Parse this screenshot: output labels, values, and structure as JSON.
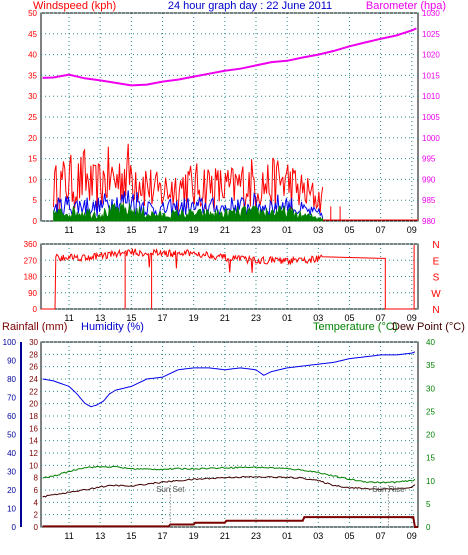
{
  "colors": {
    "background": "#ffffff",
    "frame": "#000000",
    "grid": "#2a8a8a",
    "red": "#ff0000",
    "blue": "#0000ee",
    "navy": "#00009a",
    "green": "#008000",
    "magenta": "#ee00ee",
    "darkred": "#7a0000",
    "maroon": "#400000",
    "gray": "#555555"
  },
  "header": {
    "wind_label": "Windspeed (kph)",
    "title": "24 hour graph day : 22 June 2011",
    "baro_label": "Barometer (hpa)"
  },
  "lower_header": {
    "rain_label": "Rainfall (mm)",
    "hum_label": "Humidity (%)",
    "temp_label": "Temperature (°C)",
    "dew_label": "Dew Point (°C)"
  },
  "annotations": {
    "sunset": "Sun Set",
    "sunrise": "Sun Rise"
  },
  "chart_data": [
    {
      "type": "line",
      "x": [
        "11",
        "13",
        "15",
        "17",
        "19",
        "21",
        "23",
        "01",
        "03",
        "05",
        "07",
        "09"
      ],
      "x_ticks_hours": [
        11,
        13,
        15,
        17,
        19,
        21,
        23,
        25,
        27,
        29,
        31,
        33
      ],
      "x_range_hours": [
        9.2,
        33.4
      ],
      "left_axis": {
        "title": "Windspeed (kph)",
        "ticks": [
          0,
          5,
          10,
          15,
          20,
          25,
          30,
          35,
          40,
          45,
          50
        ],
        "ylim": [
          0,
          50
        ]
      },
      "right_axis": {
        "title": "Barometer (hpa)",
        "ticks": [
          980,
          985,
          990,
          995,
          1000,
          1005,
          1010,
          1015,
          1020,
          1025,
          1030
        ],
        "ylim": [
          980,
          1030
        ]
      },
      "series": [
        {
          "name": "Barometer (hpa)",
          "axis": "right",
          "color": "#ee00ee",
          "x": [
            9.3,
            10,
            11,
            12,
            13,
            14,
            15,
            16,
            17,
            18,
            19,
            20,
            21,
            22,
            23,
            24,
            25,
            26,
            27,
            28,
            29,
            30,
            31,
            32,
            33,
            33.3
          ],
          "values": [
            1014.4,
            1014.5,
            1015.2,
            1014.3,
            1013.8,
            1013.2,
            1012.6,
            1012.8,
            1013.5,
            1014,
            1014.7,
            1015.4,
            1016.1,
            1016.6,
            1017.4,
            1018.2,
            1018.5,
            1019.3,
            1020,
            1020.9,
            1022,
            1022.9,
            1023.8,
            1024.6,
            1025.8,
            1026.3
          ]
        },
        {
          "name": "Wind gust",
          "axis": "left",
          "color": "#ff0000",
          "noisy": true,
          "x": [
            10,
            10.5,
            11,
            11.5,
            12,
            12.5,
            13,
            13.5,
            14,
            14.5,
            15,
            15.5,
            16,
            16.5,
            17,
            17.5,
            18,
            18.5,
            19,
            19.5,
            20,
            20.5,
            21,
            21.5,
            22,
            22.5,
            23,
            23.5,
            24,
            24.5,
            25,
            25.5,
            26,
            26.5,
            27,
            27.3
          ],
          "values": [
            9,
            10,
            11,
            10,
            12,
            9,
            10,
            12,
            11,
            13,
            13,
            12,
            10,
            8,
            8,
            9,
            9,
            10,
            9,
            10,
            10,
            9,
            9,
            9,
            10,
            10,
            11,
            10,
            10,
            11,
            11,
            9,
            8,
            7,
            6,
            6
          ]
        },
        {
          "name": "Wind average",
          "axis": "left",
          "color": "#0000ee",
          "noisy": true,
          "x": [
            10,
            10.5,
            11,
            11.5,
            12,
            12.5,
            13,
            13.5,
            14,
            14.5,
            15,
            15.5,
            16,
            16.5,
            17,
            17.5,
            18,
            18.5,
            19,
            19.5,
            20,
            20.5,
            21,
            21.5,
            22,
            22.5,
            23,
            23.5,
            24,
            24.5,
            25,
            25.5,
            26,
            26.5,
            27,
            27.3
          ],
          "values": [
            3.5,
            4,
            4.5,
            4,
            4.5,
            3.5,
            4,
            5,
            5,
            5.5,
            6,
            5,
            4,
            3,
            3,
            3.5,
            3.5,
            4,
            3.5,
            4,
            4,
            3.5,
            3.5,
            4,
            4,
            4,
            4.5,
            4,
            4,
            4.5,
            4.5,
            3.5,
            3,
            2.5,
            2,
            2
          ]
        },
        {
          "name": "Wind (green)",
          "axis": "left",
          "color": "#008000",
          "noisy": true,
          "fill": true,
          "x": [
            10,
            11,
            12,
            13,
            14,
            15,
            16,
            17,
            18,
            19,
            20,
            21,
            22,
            23,
            24,
            25,
            26,
            27,
            27.3
          ],
          "values": [
            2,
            2.5,
            2.5,
            2,
            3,
            3,
            2,
            1.5,
            2,
            2,
            2,
            2,
            2.5,
            2.5,
            2.5,
            2.5,
            1.5,
            1,
            1
          ]
        }
      ]
    },
    {
      "type": "line",
      "x": [
        "11",
        "13",
        "15",
        "17",
        "19",
        "21",
        "23",
        "01",
        "03",
        "05",
        "07",
        "09"
      ],
      "left_axis": {
        "ticks": [
          0,
          90,
          180,
          270,
          360
        ],
        "ylim": [
          0,
          360
        ]
      },
      "right_axis_labels": [
        "N",
        "W",
        "S",
        "E",
        "N"
      ],
      "series": [
        {
          "name": "Wind direction",
          "color": "#ff0000",
          "noisy": true,
          "x": [
            10,
            11,
            12,
            13,
            14,
            15,
            16,
            17,
            18,
            19,
            20,
            21,
            22,
            23,
            24,
            25,
            26,
            27,
            27.3,
            31.3,
            31.4,
            33.1,
            33.2
          ],
          "values": [
            285,
            290,
            285,
            295,
            305,
            315,
            310,
            310,
            305,
            310,
            300,
            285,
            275,
            270,
            270,
            265,
            268,
            280,
            280,
            280,
            0,
            0,
            355
          ]
        }
      ]
    },
    {
      "type": "line",
      "x": [
        "11",
        "13",
        "15",
        "17",
        "19",
        "21",
        "23",
        "01",
        "03",
        "05",
        "07",
        "09"
      ],
      "left_axis_humidity": {
        "title": "Humidity (%)",
        "ticks": [
          0,
          10,
          20,
          30,
          40,
          50,
          60,
          70,
          80,
          90,
          100
        ],
        "ylim": [
          0,
          100
        ]
      },
      "left_axis_rain": {
        "title": "Rainfall (mm)",
        "ticks": [
          0,
          2,
          4,
          6,
          8,
          10,
          12,
          14,
          16,
          18,
          20,
          22,
          24,
          26,
          28,
          30
        ],
        "ylim": [
          0,
          30
        ]
      },
      "right_axis": {
        "title": "Temperature (°C)",
        "ticks": [
          0,
          5,
          10,
          15,
          20,
          25,
          30,
          35,
          40
        ],
        "ylim": [
          0,
          40
        ]
      },
      "series": [
        {
          "name": "Humidity (%)",
          "axis": "humidity",
          "color": "#0000ee",
          "x": [
            9.3,
            10,
            11,
            11.5,
            12,
            12.4,
            12.8,
            13.2,
            13.6,
            14,
            15,
            16,
            17,
            17.5,
            18,
            19,
            20,
            21,
            22,
            23,
            23.5,
            24,
            25,
            26,
            27,
            28,
            29,
            30,
            31,
            32,
            33,
            33.3
          ],
          "values": [
            80,
            79,
            76,
            72,
            67,
            65,
            66,
            68,
            72,
            74,
            76,
            80,
            81,
            83,
            85,
            86,
            86,
            85,
            86,
            85,
            82,
            84,
            86,
            87,
            88,
            89,
            91,
            92,
            93,
            93,
            94,
            95
          ]
        },
        {
          "name": "Temperature (°C)",
          "axis": "temp",
          "color": "#008000",
          "x": [
            9.3,
            10,
            11,
            12,
            13,
            14,
            15,
            16,
            17,
            18,
            19,
            20,
            21,
            22,
            23,
            24,
            25,
            26,
            27,
            28,
            29,
            30,
            31,
            32,
            33,
            33.3
          ],
          "values": [
            10.6,
            11,
            12,
            12.9,
            13,
            13,
            12.6,
            12.5,
            12.5,
            12.6,
            12.6,
            12.7,
            12.8,
            12.9,
            12.9,
            12.8,
            12.6,
            12.3,
            11.8,
            11,
            10.3,
            9.8,
            9.6,
            9.7,
            10,
            10.5
          ]
        },
        {
          "name": "Dew Point (°C)",
          "axis": "temp",
          "color": "#400000",
          "x": [
            9.3,
            10,
            11,
            12,
            13,
            14,
            15,
            16,
            17,
            18,
            19,
            20,
            21,
            22,
            23,
            24,
            25,
            26,
            27,
            28,
            29,
            30,
            31,
            32,
            33,
            33.3
          ],
          "values": [
            6.5,
            7,
            7.5,
            8,
            8.7,
            9,
            8.8,
            9.3,
            9.7,
            10,
            10.3,
            10.5,
            10.7,
            10.8,
            10.8,
            10.8,
            10.7,
            10.6,
            10,
            9,
            8.5,
            8.3,
            8.2,
            8.3,
            8.5,
            9.5
          ]
        },
        {
          "name": "Rainfall (mm)",
          "axis": "rain",
          "color": "#7a0000",
          "x": [
            9.3,
            17.4,
            17.5,
            19,
            19.1,
            21,
            21.1,
            26,
            26.1,
            33.1,
            33.2,
            33.4
          ],
          "values": [
            0.1,
            0.1,
            0.4,
            0.4,
            0.7,
            0.7,
            1.0,
            1.0,
            1.6,
            1.6,
            0,
            0
          ]
        }
      ],
      "markers": [
        {
          "label": "Sun Set",
          "x": 17.5
        },
        {
          "label": "Sun Rise",
          "x": 31.5
        }
      ]
    }
  ]
}
